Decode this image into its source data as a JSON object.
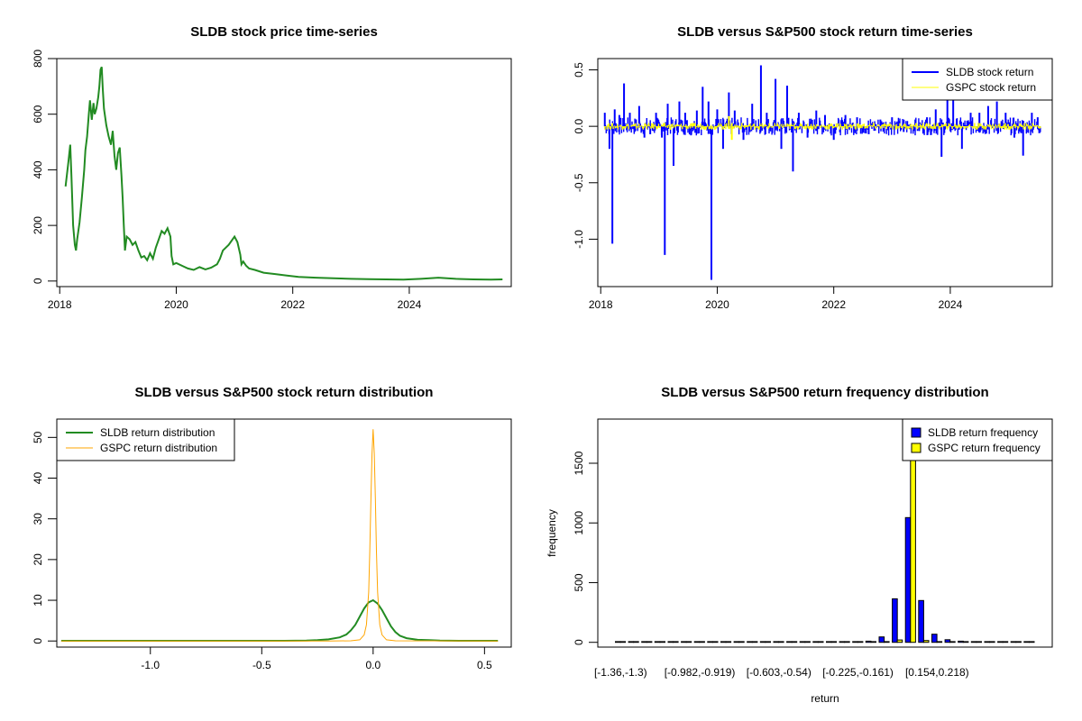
{
  "chart_data": [
    {
      "id": "price",
      "type": "line",
      "title": "SLDB stock price time-series",
      "xlabel": "",
      "ylabel": "",
      "xlim": [
        2017.95,
        2025.75
      ],
      "ylim": [
        -20,
        800
      ],
      "xticks": [
        2018,
        2020,
        2022,
        2024
      ],
      "xtick_labels": [
        "2018",
        "2020",
        "2022",
        "2024"
      ],
      "yticks": [
        0,
        200,
        400,
        600,
        800
      ],
      "ytick_labels": [
        "0",
        "200",
        "400",
        "600",
        "800"
      ],
      "grid": false,
      "legend": null,
      "series": [
        {
          "color": "#228B22",
          "x": [
            2018.1,
            2018.15,
            2018.18,
            2018.2,
            2018.23,
            2018.26,
            2018.28,
            2018.3,
            2018.34,
            2018.38,
            2018.42,
            2018.44,
            2018.47,
            2018.5,
            2018.52,
            2018.55,
            2018.58,
            2018.6,
            2018.63,
            2018.66,
            2018.68,
            2018.7,
            2018.72,
            2018.74,
            2018.76,
            2018.8,
            2018.84,
            2018.88,
            2018.91,
            2018.94,
            2018.97,
            2019.0,
            2019.03,
            2019.06,
            2019.08,
            2019.1,
            2019.12,
            2019.15,
            2019.2,
            2019.25,
            2019.3,
            2019.35,
            2019.4,
            2019.45,
            2019.5,
            2019.55,
            2019.6,
            2019.65,
            2019.7,
            2019.75,
            2019.8,
            2019.85,
            2019.9,
            2019.92,
            2019.95,
            2020.0,
            2020.1,
            2020.2,
            2020.3,
            2020.4,
            2020.5,
            2020.6,
            2020.7,
            2020.75,
            2020.8,
            2020.85,
            2020.9,
            2021.0,
            2021.05,
            2021.1,
            2021.12,
            2021.15,
            2021.2,
            2021.25,
            2021.35,
            2021.5,
            2021.7,
            2021.9,
            2022.1,
            2022.4,
            2022.7,
            2023.0,
            2023.3,
            2023.6,
            2023.9,
            2024.2,
            2024.5,
            2024.8,
            2025.1,
            2025.4,
            2025.6
          ],
          "y": [
            340,
            430,
            490,
            380,
            200,
            130,
            110,
            150,
            210,
            300,
            400,
            470,
            520,
            600,
            650,
            580,
            640,
            600,
            620,
            660,
            700,
            760,
            770,
            690,
            620,
            560,
            520,
            490,
            540,
            450,
            400,
            460,
            480,
            380,
            300,
            200,
            110,
            160,
            150,
            130,
            140,
            110,
            85,
            90,
            75,
            100,
            80,
            120,
            150,
            180,
            170,
            190,
            160,
            90,
            60,
            65,
            55,
            45,
            40,
            50,
            42,
            48,
            60,
            80,
            110,
            120,
            130,
            160,
            140,
            95,
            60,
            70,
            55,
            45,
            40,
            30,
            25,
            20,
            15,
            12,
            10,
            8,
            7,
            6,
            5,
            8,
            12,
            8,
            6,
            5,
            6
          ]
        }
      ]
    },
    {
      "id": "returns",
      "type": "line",
      "title": "SLDB versus S&P500 stock return time-series",
      "xlabel": "",
      "ylabel": "",
      "xlim": [
        2017.95,
        2025.75
      ],
      "ylim": [
        -1.42,
        0.6
      ],
      "xticks": [
        2018,
        2020,
        2022,
        2024
      ],
      "xtick_labels": [
        "2018",
        "2020",
        "2022",
        "2024"
      ],
      "yticks": [
        0.5,
        0.0,
        -0.5,
        -1.0
      ],
      "ytick_labels": [
        "0.5",
        "0.0",
        "-0.5",
        "-1.0"
      ],
      "grid": false,
      "legend": "top-right",
      "series": [
        {
          "name": "SLDB stock return",
          "color": "#0000FF",
          "spike_x": [
            2018.07,
            2018.15,
            2018.2,
            2018.24,
            2018.32,
            2018.4,
            2018.5,
            2018.58,
            2018.66,
            2018.75,
            2018.85,
            2018.95,
            2019.05,
            2019.1,
            2019.15,
            2019.25,
            2019.35,
            2019.45,
            2019.55,
            2019.65,
            2019.75,
            2019.85,
            2019.9,
            2020.0,
            2020.1,
            2020.2,
            2020.3,
            2020.45,
            2020.6,
            2020.75,
            2020.85,
            2021.0,
            2021.1,
            2021.2,
            2021.3,
            2021.4,
            2021.55,
            2021.7,
            2021.85,
            2022.0,
            2022.2,
            2022.4,
            2022.6,
            2022.8,
            2023.0,
            2023.2,
            2023.4,
            2023.6,
            2023.75,
            2023.85,
            2023.95,
            2024.05,
            2024.2,
            2024.35,
            2024.5,
            2024.65,
            2024.8,
            2024.95,
            2025.1,
            2025.25,
            2025.4,
            2025.5
          ],
          "spike_y": [
            0.12,
            -0.2,
            -1.04,
            0.15,
            0.1,
            0.38,
            0.12,
            -0.05,
            0.18,
            -0.1,
            -0.07,
            0.12,
            -0.1,
            -1.14,
            0.2,
            -0.35,
            0.22,
            0.12,
            -0.08,
            0.14,
            0.35,
            0.22,
            -1.36,
            0.15,
            -0.2,
            0.3,
            0.14,
            -0.12,
            0.2,
            0.54,
            0.12,
            0.42,
            -0.2,
            0.36,
            -0.4,
            0.12,
            -0.1,
            0.14,
            0.1,
            -0.12,
            0.1,
            0.08,
            -0.07,
            0.06,
            0.08,
            -0.05,
            0.06,
            0.08,
            0.15,
            -0.27,
            0.26,
            0.3,
            -0.2,
            0.12,
            0.12,
            0.18,
            0.22,
            0.12,
            -0.1,
            -0.26,
            0.12,
            0.08
          ],
          "band_amplitude": 0.08
        },
        {
          "name": "GSPC stock return",
          "color": "#FFFF00",
          "band_amplitude": 0.03,
          "spike_x": [
            2020.2,
            2020.25
          ],
          "spike_y": [
            0.09,
            -0.12
          ]
        }
      ]
    },
    {
      "id": "density",
      "type": "line",
      "title": "SLDB versus S&P500 stock return distribution",
      "xlabel": "",
      "ylabel": "",
      "xlim": [
        -1.42,
        0.62
      ],
      "ylim": [
        -1.5,
        54.5
      ],
      "xticks": [
        -1.0,
        -0.5,
        0.0,
        0.5
      ],
      "xtick_labels": [
        "-1.0",
        "-0.5",
        "0.0",
        "0.5"
      ],
      "yticks": [
        0,
        10,
        20,
        30,
        40,
        50
      ],
      "ytick_labels": [
        "0",
        "10",
        "20",
        "30",
        "40",
        "50"
      ],
      "grid": false,
      "legend": "top-left",
      "series": [
        {
          "name": "SLDB return distribution",
          "color": "#228B22",
          "x": [
            -1.4,
            -1.2,
            -1.0,
            -0.8,
            -0.6,
            -0.4,
            -0.3,
            -0.25,
            -0.2,
            -0.15,
            -0.12,
            -0.1,
            -0.08,
            -0.06,
            -0.04,
            -0.02,
            0.0,
            0.02,
            0.04,
            0.06,
            0.08,
            0.1,
            0.12,
            0.15,
            0.2,
            0.25,
            0.3,
            0.4,
            0.5,
            0.56
          ],
          "y": [
            0.05,
            0.05,
            0.05,
            0.05,
            0.05,
            0.05,
            0.1,
            0.2,
            0.4,
            0.9,
            1.6,
            2.6,
            4.0,
            6.0,
            8.0,
            9.5,
            10.0,
            9.2,
            7.6,
            5.6,
            3.6,
            2.2,
            1.3,
            0.7,
            0.3,
            0.2,
            0.1,
            0.05,
            0.05,
            0.05
          ]
        },
        {
          "name": "GSPC return distribution",
          "color": "#FFA500",
          "x": [
            -1.4,
            -0.2,
            -0.1,
            -0.06,
            -0.04,
            -0.03,
            -0.02,
            -0.015,
            -0.01,
            -0.005,
            0.0,
            0.005,
            0.01,
            0.015,
            0.02,
            0.03,
            0.04,
            0.06,
            0.1,
            0.56
          ],
          "y": [
            0,
            0,
            0.05,
            0.3,
            1.5,
            4.0,
            12.0,
            22.0,
            35.0,
            46.0,
            52.0,
            46.0,
            35.0,
            22.0,
            12.0,
            4.0,
            1.5,
            0.3,
            0.05,
            0
          ]
        }
      ]
    },
    {
      "id": "frequency",
      "type": "bar",
      "title": "SLDB versus S&P500 return frequency distribution",
      "xlabel": "return",
      "ylabel": "frequency",
      "ylim": [
        -40,
        1870
      ],
      "yticks": [
        0,
        500,
        1000,
        1500
      ],
      "ytick_labels": [
        "0",
        "500",
        "1000",
        "1500"
      ],
      "grid": false,
      "legend": "top-right",
      "category_labels": [
        {
          "index": 0,
          "label": "[-1.36,-1.3)"
        },
        {
          "index": 6,
          "label": "[-0.982,-0.919)"
        },
        {
          "index": 12,
          "label": "[-0.603,-0.54)"
        },
        {
          "index": 18,
          "label": "[-0.225,-0.161)"
        },
        {
          "index": 24,
          "label": "[0.154,0.218)"
        }
      ],
      "series": [
        {
          "name": "SLDB return frequency",
          "color": "#0000FF",
          "values": [
            1,
            0,
            0,
            0,
            0,
            0,
            1,
            0,
            0,
            0,
            0,
            0,
            0,
            0,
            0,
            0,
            1,
            3,
            6,
            10,
            45,
            365,
            1045,
            350,
            68,
            22,
            10,
            6,
            3,
            2,
            1,
            1
          ]
        },
        {
          "name": "GSPC return frequency",
          "color": "#FFFF00",
          "values": [
            0,
            0,
            0,
            0,
            0,
            0,
            0,
            0,
            0,
            0,
            0,
            0,
            0,
            0,
            0,
            0,
            0,
            0,
            0,
            0,
            2,
            20,
            1800,
            15,
            0,
            0,
            0,
            0,
            0,
            0,
            0,
            0
          ]
        }
      ]
    }
  ]
}
